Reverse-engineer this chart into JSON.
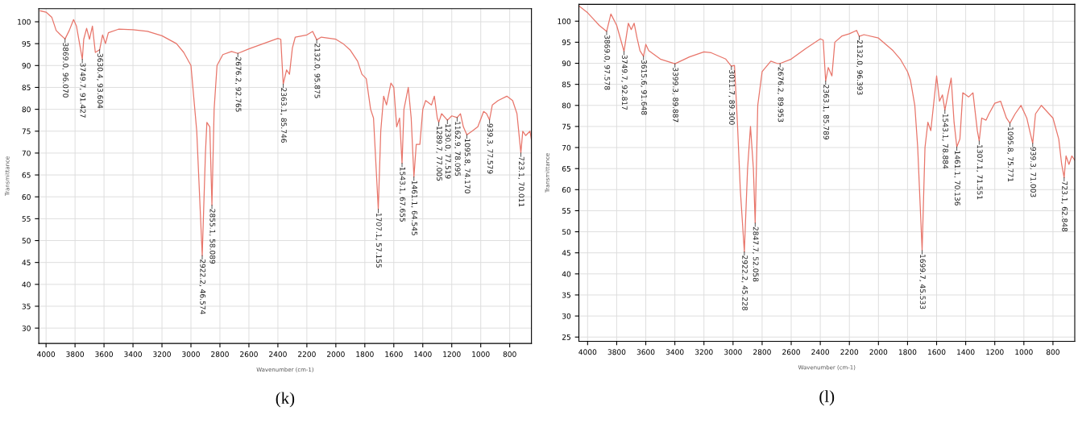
{
  "chart_data": [
    {
      "type": "line",
      "title": "(k)",
      "xlabel": "Wavenumber (cm-1)",
      "ylabel": "Transmittance",
      "xlim": [
        4050,
        650
      ],
      "ylim": [
        26.5,
        103
      ],
      "xticks": [
        4000,
        3800,
        3600,
        3400,
        3200,
        3000,
        2800,
        2600,
        2400,
        2200,
        2000,
        1800,
        1600,
        1400,
        1200,
        1000,
        800
      ],
      "yticks": [
        30,
        35,
        40,
        45,
        50,
        55,
        60,
        65,
        70,
        75,
        80,
        85,
        90,
        95,
        100
      ],
      "grid": true,
      "series": [
        {
          "color": "#e8756a",
          "x": [
            4040,
            4000,
            3960,
            3930,
            3900,
            3869.0,
            3840,
            3810,
            3790,
            3749.7,
            3740,
            3720,
            3700,
            3680,
            3660,
            3630.4,
            3610,
            3590,
            3570,
            3500,
            3400,
            3300,
            3200,
            3100,
            3050,
            3000,
            2960,
            2922.2,
            2900,
            2890,
            2870,
            2855.1,
            2840,
            2820,
            2780,
            2720,
            2676.2,
            2600,
            2500,
            2400,
            2380,
            2363.1,
            2340,
            2320,
            2300,
            2280,
            2200,
            2160,
            2132.0,
            2100,
            2000,
            1950,
            1900,
            1850,
            1820,
            1790,
            1760,
            1740,
            1707.1,
            1690,
            1670,
            1650,
            1620,
            1600,
            1580,
            1560,
            1543.1,
            1530,
            1500,
            1480,
            1461.1,
            1445,
            1420,
            1400,
            1380,
            1340,
            1320,
            1300,
            1289.7,
            1270,
            1230.0,
            1200,
            1162.9,
            1140,
            1120,
            1095.8,
            1060,
            1020,
            980,
            960,
            939.3,
            920,
            880,
            820,
            780,
            750,
            723.1,
            710,
            690,
            660,
            650
          ],
          "values": [
            102.5,
            102.2,
            101,
            98,
            97,
            96.07,
            98,
            100.5,
            99,
            91.43,
            96,
            98.5,
            96,
            99,
            93,
            93.6,
            97,
            95,
            97.5,
            98.3,
            98.2,
            97.8,
            96.8,
            95,
            93,
            90,
            75,
            46.57,
            70,
            77,
            76,
            58.09,
            80,
            90,
            92.5,
            93.2,
            92.77,
            93.8,
            95,
            96.2,
            96,
            85.75,
            89,
            88,
            94,
            96.5,
            97,
            97.8,
            95.88,
            96.5,
            96,
            95,
            93.5,
            91,
            88,
            87,
            80,
            78,
            57.16,
            75,
            83,
            81,
            86,
            85,
            76,
            78,
            67.66,
            80,
            85,
            78,
            64.55,
            72,
            72,
            80,
            82,
            81,
            83,
            78,
            77.01,
            79,
            77.52,
            78.5,
            78.1,
            79,
            76,
            74.17,
            75,
            76,
            79.5,
            79,
            77.58,
            81,
            82,
            83,
            82,
            79,
            70.01,
            75,
            74,
            75,
            73
          ]
        }
      ],
      "annotations": [
        {
          "text": "3869.0, 96.070",
          "x": 3869.0,
          "y": 96.07
        },
        {
          "text": "3749.7, 91.427",
          "x": 3749.7,
          "y": 91.43
        },
        {
          "text": "3630.4, 93.604",
          "x": 3630.4,
          "y": 93.6
        },
        {
          "text": "2922.2, 46.574",
          "x": 2922.2,
          "y": 46.57
        },
        {
          "text": "2855.1, 58.089",
          "x": 2855.1,
          "y": 58.09
        },
        {
          "text": "2676.2, 92.765",
          "x": 2676.2,
          "y": 92.77
        },
        {
          "text": "2363.1, 85.746",
          "x": 2363.1,
          "y": 85.75
        },
        {
          "text": "2132.0, 95.875",
          "x": 2132.0,
          "y": 95.88
        },
        {
          "text": "1707.1, 57.155",
          "x": 1707.1,
          "y": 57.16
        },
        {
          "text": "1543.1, 67.655",
          "x": 1543.1,
          "y": 67.66
        },
        {
          "text": "1461.1, 64.545",
          "x": 1461.1,
          "y": 64.55
        },
        {
          "text": "1289.7, 77.005",
          "x": 1289.7,
          "y": 77.01
        },
        {
          "text": "1230.0, 77.519",
          "x": 1230.0,
          "y": 77.52
        },
        {
          "text": "1162.9, 78.095",
          "x": 1162.9,
          "y": 78.1
        },
        {
          "text": "1095.8, 74.170",
          "x": 1095.8,
          "y": 74.17
        },
        {
          "text": "939.3, 77.579",
          "x": 939.3,
          "y": 77.58
        },
        {
          "text": "723.1, 70.011",
          "x": 723.1,
          "y": 70.01
        }
      ]
    },
    {
      "type": "line",
      "title": "(l)",
      "xlabel": "Wavenumber (cm-1)",
      "ylabel": "Transmittance",
      "xlim": [
        4060,
        650
      ],
      "ylim": [
        24,
        104
      ],
      "xticks": [
        4000,
        3800,
        3600,
        3400,
        3200,
        3000,
        2800,
        2600,
        2400,
        2200,
        2000,
        1800,
        1600,
        1400,
        1200,
        1000,
        800
      ],
      "yticks": [
        25,
        30,
        35,
        40,
        45,
        50,
        55,
        60,
        65,
        70,
        75,
        80,
        85,
        90,
        95,
        100
      ],
      "grid": true,
      "series": [
        {
          "color": "#e8756a",
          "x": [
            4055,
            4000,
            3960,
            3920,
            3869.0,
            3840,
            3800,
            3749.7,
            3720,
            3700,
            3680,
            3660,
            3640,
            3615.6,
            3600,
            3580,
            3500,
            3399.3,
            3300,
            3200,
            3150,
            3050,
            3011.7,
            2990,
            2970,
            2950,
            2922.2,
            2900,
            2880,
            2860,
            2847.7,
            2830,
            2800,
            2740,
            2700,
            2676.2,
            2600,
            2500,
            2400,
            2380,
            2363.1,
            2345,
            2320,
            2300,
            2250,
            2200,
            2150,
            2132.0,
            2100,
            2000,
            1950,
            1900,
            1850,
            1800,
            1780,
            1750,
            1730,
            1699.7,
            1680,
            1660,
            1640,
            1600,
            1580,
            1560,
            1543.1,
            1520,
            1500,
            1480,
            1461.1,
            1440,
            1420,
            1380,
            1350,
            1320,
            1307.1,
            1290,
            1260,
            1240,
            1200,
            1160,
            1120,
            1095.8,
            1060,
            1020,
            980,
            960,
            939.3,
            920,
            880,
            800,
            760,
            740,
            723.1,
            710,
            690,
            670,
            650
          ],
          "values": [
            103.5,
            102,
            100.5,
            99,
            97.58,
            101.7,
            99,
            92.82,
            99.5,
            98,
            99.5,
            96,
            93,
            91.65,
            94.5,
            93,
            91,
            89.89,
            91.5,
            92.7,
            92.5,
            91,
            89.3,
            89.5,
            76,
            60,
            45.23,
            65,
            75,
            65,
            52.06,
            80,
            88,
            90.5,
            90,
            89.95,
            91,
            93.5,
            95.8,
            95.5,
            85.79,
            89,
            87,
            95,
            96.5,
            97,
            97.8,
            96.39,
            96.8,
            96,
            94.5,
            93,
            91,
            88,
            86,
            80,
            70,
            45.53,
            70,
            76,
            74,
            87,
            81,
            82.5,
            78.88,
            83,
            86.5,
            76,
            70.14,
            72,
            83,
            82,
            83,
            74,
            71.55,
            77,
            76.5,
            78,
            80.5,
            81,
            77,
            75.77,
            78,
            80,
            77,
            74,
            71.0,
            78,
            80,
            77,
            72,
            66,
            62.85,
            68,
            66,
            68,
            67
          ]
        }
      ],
      "annotations": [
        {
          "text": "3869.0, 97.578",
          "x": 3869.0,
          "y": 97.58
        },
        {
          "text": "3749.7, 92.817",
          "x": 3749.7,
          "y": 92.82
        },
        {
          "text": "3615.6, 91.648",
          "x": 3615.6,
          "y": 91.65
        },
        {
          "text": "3399.3, 89.887",
          "x": 3399.3,
          "y": 89.89
        },
        {
          "text": "3011.7, 89.300",
          "x": 3011.7,
          "y": 89.3
        },
        {
          "text": "2922.2, 45.228",
          "x": 2922.2,
          "y": 45.23
        },
        {
          "text": "2847.7, 52.058",
          "x": 2847.7,
          "y": 52.06
        },
        {
          "text": "2676.2, 89.953",
          "x": 2676.2,
          "y": 89.95
        },
        {
          "text": "2363.1, 85.789",
          "x": 2363.1,
          "y": 85.79
        },
        {
          "text": "2132.0, 96.393",
          "x": 2132.0,
          "y": 96.39
        },
        {
          "text": "1699.7, 45.533",
          "x": 1699.7,
          "y": 45.53
        },
        {
          "text": "1543.1, 78.884",
          "x": 1543.1,
          "y": 78.88
        },
        {
          "text": "1461.1, 70.136",
          "x": 1461.1,
          "y": 70.14
        },
        {
          "text": "1307.1, 71.551",
          "x": 1307.1,
          "y": 71.55
        },
        {
          "text": "1095.8, 75.771",
          "x": 1095.8,
          "y": 75.77
        },
        {
          "text": "939.3, 71.003",
          "x": 939.3,
          "y": 71.0
        },
        {
          "text": "723.1, 62.848",
          "x": 723.1,
          "y": 62.85
        }
      ]
    }
  ]
}
